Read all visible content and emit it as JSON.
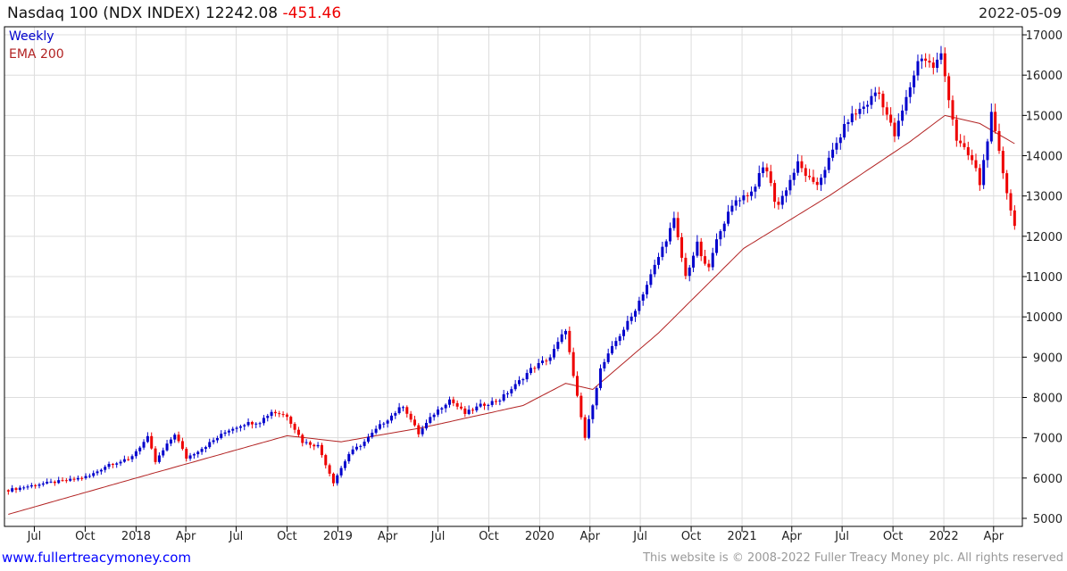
{
  "header": {
    "title": "Nasdaq 100 (NDX INDEX) 12242.08",
    "change": "-451.46",
    "date": "2022-05-09"
  },
  "footer": {
    "website": "www.fullertreacymoney.com",
    "copyright": "This website is © 2008-2022 Fuller Treacy Money plc. All rights reserved"
  },
  "colors": {
    "up": "#0000cc",
    "down": "#ee0000",
    "ema": "#b22222",
    "grid": "#dddddd"
  },
  "chart_data": {
    "type": "candlestick",
    "legend": [
      "Weekly",
      "EMA 200"
    ],
    "legend_placement": "top-left",
    "ylim": [
      4800,
      17200
    ],
    "yticks": [
      5000,
      6000,
      7000,
      8000,
      9000,
      10000,
      11000,
      12000,
      13000,
      14000,
      15000,
      16000,
      17000
    ],
    "xticks": [
      [
        "2017-07-01",
        "Jul"
      ],
      [
        "2017-10-01",
        "Oct"
      ],
      [
        "2018-01-01",
        "2018"
      ],
      [
        "2018-04-01",
        "Apr"
      ],
      [
        "2018-07-01",
        "Jul"
      ],
      [
        "2018-10-01",
        "Oct"
      ],
      [
        "2019-01-01",
        "2019"
      ],
      [
        "2019-04-01",
        "Apr"
      ],
      [
        "2019-07-01",
        "Jul"
      ],
      [
        "2019-10-01",
        "Oct"
      ],
      [
        "2020-01-01",
        "2020"
      ],
      [
        "2020-04-01",
        "Apr"
      ],
      [
        "2020-07-01",
        "Jul"
      ],
      [
        "2020-10-01",
        "Oct"
      ],
      [
        "2021-01-01",
        "2021"
      ],
      [
        "2021-04-01",
        "Apr"
      ],
      [
        "2021-07-01",
        "Jul"
      ],
      [
        "2021-10-01",
        "Oct"
      ],
      [
        "2022-01-01",
        "2022"
      ],
      [
        "2022-04-01",
        "Apr"
      ]
    ],
    "xrange": [
      "2017-05-08",
      "2022-05-23"
    ],
    "close_anchors": [
      [
        "2017-05-15",
        5700
      ],
      [
        "2017-07-10",
        5850
      ],
      [
        "2017-09-04",
        5950
      ],
      [
        "2017-10-09",
        6050
      ],
      [
        "2017-11-13",
        6350
      ],
      [
        "2017-12-18",
        6450
      ],
      [
        "2018-01-22",
        7000
      ],
      [
        "2018-02-05",
        6400
      ],
      [
        "2018-03-12",
        7100
      ],
      [
        "2018-04-02",
        6500
      ],
      [
        "2018-05-07",
        6800
      ],
      [
        "2018-06-18",
        7200
      ],
      [
        "2018-07-16",
        7350
      ],
      [
        "2018-08-13",
        7400
      ],
      [
        "2018-09-03",
        7650
      ],
      [
        "2018-10-01",
        7550
      ],
      [
        "2018-10-29",
        6900
      ],
      [
        "2018-11-26",
        6800
      ],
      [
        "2018-12-24",
        5900
      ],
      [
        "2019-01-21",
        6600
      ],
      [
        "2019-02-18",
        6900
      ],
      [
        "2019-03-18",
        7300
      ],
      [
        "2019-04-29",
        7800
      ],
      [
        "2019-05-27",
        7100
      ],
      [
        "2019-06-24",
        7600
      ],
      [
        "2019-07-22",
        7950
      ],
      [
        "2019-08-19",
        7600
      ],
      [
        "2019-09-16",
        7800
      ],
      [
        "2019-10-21",
        7950
      ],
      [
        "2019-11-18",
        8300
      ],
      [
        "2019-12-16",
        8700
      ],
      [
        "2020-01-20",
        9000
      ],
      [
        "2020-02-17",
        9700
      ],
      [
        "2020-03-02",
        8500
      ],
      [
        "2020-03-23",
        7000
      ],
      [
        "2020-04-20",
        8700
      ],
      [
        "2020-05-18",
        9400
      ],
      [
        "2020-06-15",
        10000
      ],
      [
        "2020-07-13",
        10800
      ],
      [
        "2020-08-31",
        12400
      ],
      [
        "2020-09-21",
        11000
      ],
      [
        "2020-10-12",
        11800
      ],
      [
        "2020-10-30",
        11100
      ],
      [
        "2020-11-23",
        12200
      ],
      [
        "2020-12-21",
        12900
      ],
      [
        "2021-01-18",
        13100
      ],
      [
        "2021-02-12",
        13800
      ],
      [
        "2021-03-05",
        12700
      ],
      [
        "2021-04-12",
        13800
      ],
      [
        "2021-05-14",
        13200
      ],
      [
        "2021-06-14",
        14100
      ],
      [
        "2021-07-12",
        14900
      ],
      [
        "2021-08-16",
        15300
      ],
      [
        "2021-09-03",
        15650
      ],
      [
        "2021-10-04",
        14500
      ],
      [
        "2021-11-19",
        16500
      ],
      [
        "2021-12-13",
        16200
      ],
      [
        "2021-12-27",
        16500
      ],
      [
        "2022-01-24",
        14400
      ],
      [
        "2022-02-25",
        13800
      ],
      [
        "2022-03-07",
        13300
      ],
      [
        "2022-03-28",
        15000
      ],
      [
        "2022-04-29",
        12850
      ],
      [
        "2022-05-09",
        12242
      ]
    ],
    "ema_anchors": [
      [
        "2017-05-15",
        5100
      ],
      [
        "2018-01-01",
        6000
      ],
      [
        "2018-10-01",
        7050
      ],
      [
        "2019-01-07",
        6900
      ],
      [
        "2019-06-03",
        7250
      ],
      [
        "2019-12-02",
        7800
      ],
      [
        "2020-02-17",
        8350
      ],
      [
        "2020-04-06",
        8200
      ],
      [
        "2020-08-03",
        9600
      ],
      [
        "2021-01-04",
        11700
      ],
      [
        "2021-06-07",
        13000
      ],
      [
        "2021-11-01",
        14350
      ],
      [
        "2022-01-03",
        15000
      ],
      [
        "2022-03-07",
        14800
      ],
      [
        "2022-05-09",
        14300
      ]
    ]
  }
}
